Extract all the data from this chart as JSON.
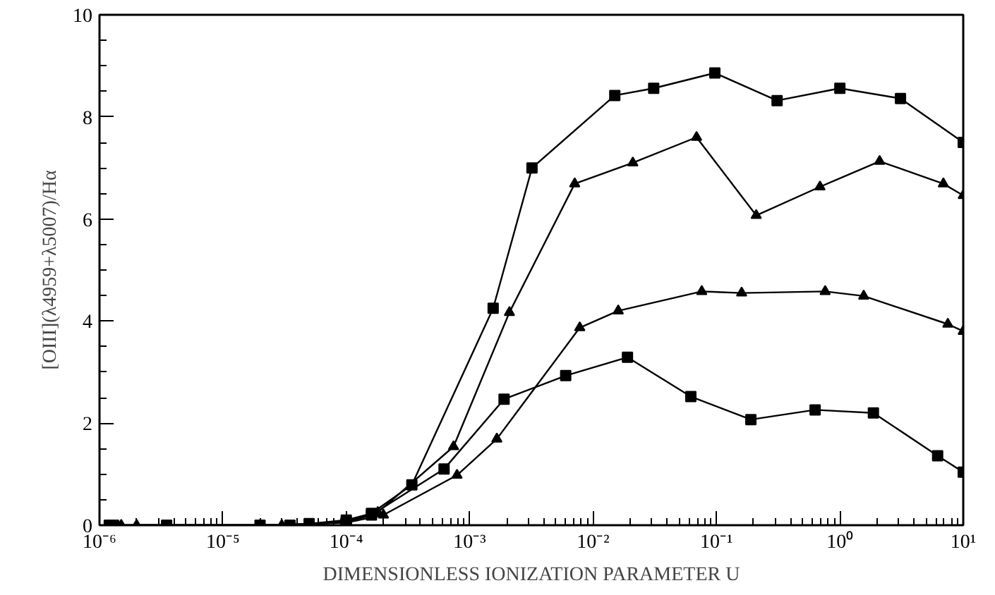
{
  "chart_data": {
    "type": "line",
    "xlabel": "DIMENSIONLESS IONIZATION PARAMETER U",
    "ylabel": "[OIII](λ4959+λ5007)/Hα",
    "log": "x",
    "xlim": [
      1e-06,
      10
    ],
    "ylim": [
      0,
      10
    ],
    "xticks": [
      {
        "value": 1e-06,
        "label": "10⁻⁶"
      },
      {
        "value": 1e-05,
        "label": "10⁻⁵"
      },
      {
        "value": 0.0001,
        "label": "10⁻⁴"
      },
      {
        "value": 0.001,
        "label": "10⁻³"
      },
      {
        "value": 0.01,
        "label": "10⁻²"
      },
      {
        "value": 0.1,
        "label": "10⁻¹"
      },
      {
        "value": 1,
        "label": "10⁰"
      },
      {
        "value": 10,
        "label": "10¹"
      }
    ],
    "yticks": [
      0,
      2,
      4,
      6,
      8,
      10
    ],
    "grid": false,
    "line_style": "solid",
    "series": [
      {
        "color": "#000000",
        "marker": "square",
        "x": [
          1.2e-06,
          3.5e-06,
          2e-05,
          5e-05,
          0.0001,
          0.00016,
          0.00034,
          0.00155,
          0.0032,
          0.015,
          0.031,
          0.097,
          0.31,
          1.0,
          3.1,
          10
        ],
        "values": [
          0,
          0,
          0,
          0.03,
          0.1,
          0.23,
          0.79,
          4.25,
          7.0,
          8.42,
          8.56,
          8.86,
          8.32,
          8.56,
          8.36,
          7.5
        ]
      },
      {
        "color": "#000000",
        "marker": "triangle",
        "x": [
          1.5e-06,
          2e-05,
          5e-05,
          0.0001,
          0.00018,
          0.00074,
          0.0021,
          0.0071,
          0.021,
          0.069,
          0.21,
          0.69,
          2.1,
          6.9,
          10
        ],
        "values": [
          0,
          0,
          0.02,
          0.08,
          0.25,
          1.54,
          4.17,
          6.69,
          7.1,
          7.6,
          6.07,
          6.63,
          7.13,
          6.69,
          6.46
        ]
      },
      {
        "color": "#000000",
        "marker": "triangle",
        "x": [
          2e-06,
          3e-05,
          0.0001,
          0.0002,
          0.00079,
          0.00166,
          0.0078,
          0.016,
          0.076,
          0.16,
          0.76,
          1.56,
          7.5,
          10
        ],
        "values": [
          0,
          0,
          0.05,
          0.2,
          0.98,
          1.69,
          3.87,
          4.2,
          4.58,
          4.55,
          4.58,
          4.49,
          3.94,
          3.8
        ]
      },
      {
        "color": "#000000",
        "marker": "square",
        "x": [
          1.3e-06,
          3.5e-05,
          0.0001,
          0.00016,
          0.00062,
          0.0019,
          0.006,
          0.019,
          0.062,
          0.19,
          0.63,
          1.87,
          6.2,
          10
        ],
        "values": [
          0,
          0,
          0.06,
          0.2,
          1.1,
          2.47,
          2.93,
          3.29,
          2.52,
          2.07,
          2.26,
          2.2,
          1.36,
          1.04
        ]
      }
    ]
  }
}
